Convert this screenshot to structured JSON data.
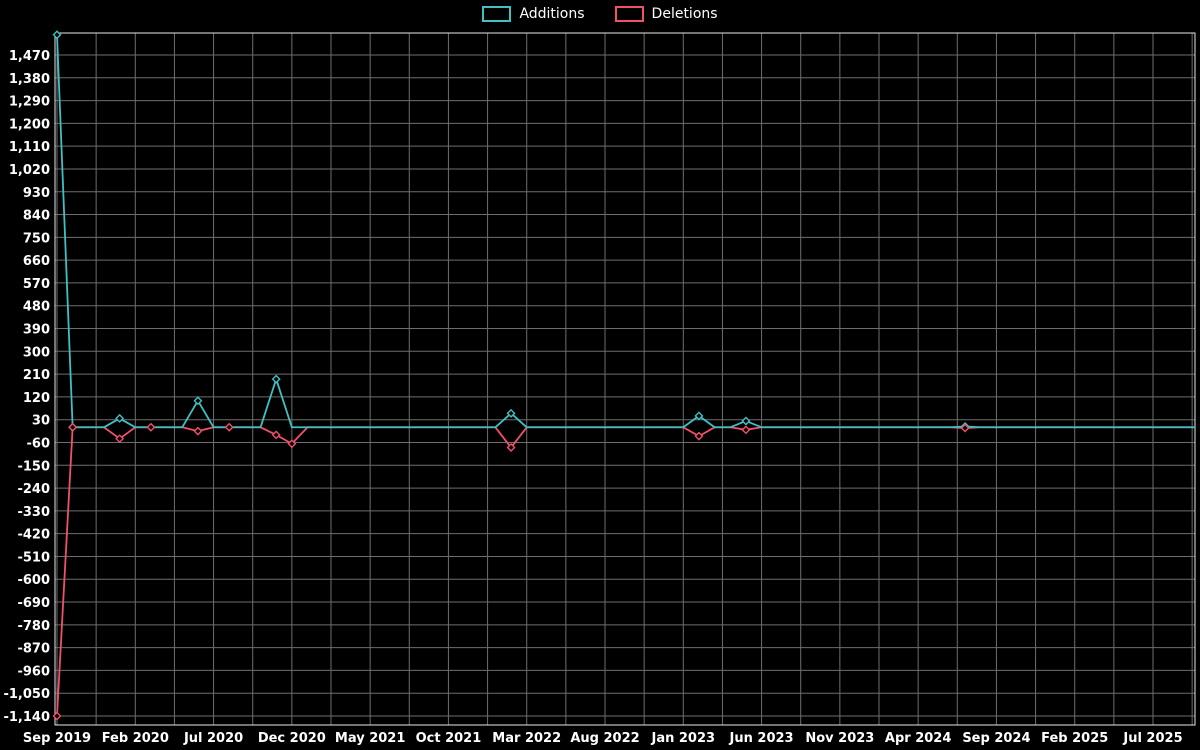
{
  "chart_data": {
    "type": "line",
    "title": "",
    "legend_position": "top-center",
    "grid": true,
    "x_axis": {
      "tick_labels": [
        "Sep 2019",
        "Feb 2020",
        "Jul 2020",
        "Dec 2020",
        "May 2021",
        "Oct 2021",
        "Mar 2022",
        "Aug 2022",
        "Jan 2023",
        "Jun 2023",
        "Nov 2023",
        "Apr 2024",
        "Sep 2024",
        "Feb 2025",
        "Jul 2025"
      ],
      "tick_month_indices": [
        0,
        5,
        10,
        15,
        20,
        25,
        30,
        35,
        40,
        45,
        50,
        55,
        60,
        65,
        70
      ],
      "total_months": 71,
      "minor_grid_step_months": 2.5
    },
    "y_axis": {
      "min": -1140,
      "max": 1470,
      "step": 90
    },
    "series": [
      {
        "name": "Additions",
        "color": "#3fc0c4",
        "default_value": 0,
        "points": [
          [
            0,
            1550
          ],
          [
            1,
            0
          ],
          [
            4,
            35
          ],
          [
            9,
            105
          ],
          [
            14,
            190
          ],
          [
            29,
            55
          ],
          [
            41,
            45
          ],
          [
            44,
            25
          ],
          [
            58,
            3
          ]
        ]
      },
      {
        "name": "Deletions",
        "color": "#f0506a",
        "default_value": 0,
        "points": [
          [
            0,
            -1140
          ],
          [
            1,
            0
          ],
          [
            4,
            -45
          ],
          [
            6,
            0
          ],
          [
            9,
            -15
          ],
          [
            11,
            0
          ],
          [
            14,
            -30
          ],
          [
            15,
            -65
          ],
          [
            29,
            -80
          ],
          [
            41,
            -35
          ],
          [
            44,
            -10
          ],
          [
            58,
            -3
          ]
        ]
      }
    ],
    "colors": {
      "background": "#000000",
      "grid": "#6e6e6e",
      "axis": "#e8e8e8",
      "text": "#ffffff"
    }
  }
}
